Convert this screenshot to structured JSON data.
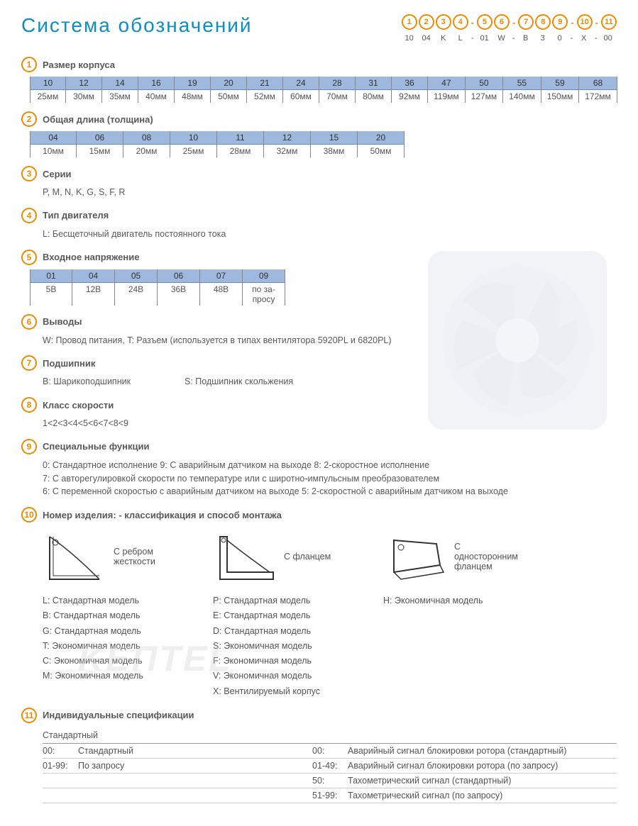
{
  "title": "Система обозначений",
  "colors": {
    "accent": "#f08a00",
    "blue": "#0b8dc6",
    "table_bg": "#9fb8dd",
    "text": "#555"
  },
  "code_strip": {
    "positions": [
      "1",
      "2",
      "3",
      "4",
      "5",
      "6",
      "7",
      "8",
      "9",
      "10",
      "11"
    ],
    "dashes_after": [
      3,
      5,
      8,
      9
    ],
    "values": [
      "10",
      "04",
      "K",
      "L",
      "01",
      "W",
      "B",
      "3",
      "0",
      "X",
      "00"
    ]
  },
  "sections": {
    "s1": {
      "num": "1",
      "title": "Размер корпуса",
      "table": {
        "top": [
          "10",
          "12",
          "14",
          "16",
          "19",
          "20",
          "21",
          "24",
          "28",
          "31",
          "36",
          "47",
          "50",
          "55",
          "59",
          "68"
        ],
        "bot": [
          "25мм",
          "30мм",
          "35мм",
          "40мм",
          "48мм",
          "50мм",
          "52мм",
          "60мм",
          "70мм",
          "80мм",
          "92мм",
          "119мм",
          "127мм",
          "140мм",
          "150мм",
          "172мм"
        ]
      }
    },
    "s2": {
      "num": "2",
      "title": "Общая длина (толщина)",
      "table": {
        "top": [
          "04",
          "06",
          "08",
          "10",
          "11",
          "12",
          "15",
          "20"
        ],
        "bot": [
          "10мм",
          "15мм",
          "20мм",
          "25мм",
          "28мм",
          "32мм",
          "38мм",
          "50мм"
        ]
      }
    },
    "s3": {
      "num": "3",
      "title": "Серии",
      "text": "P, M, N, K, G, S, F, R"
    },
    "s4": {
      "num": "4",
      "title": "Тип двигателя",
      "text": "L: Бесщеточный двигатель постоянного тока"
    },
    "s5": {
      "num": "5",
      "title": "Входное напряжение",
      "table": {
        "top": [
          "01",
          "04",
          "05",
          "06",
          "07",
          "09"
        ],
        "bot": [
          "5В",
          "12В",
          "24В",
          "36В",
          "48В",
          "по за-\nпросу"
        ]
      }
    },
    "s6": {
      "num": "6",
      "title": "Выводы",
      "text": "W: Провод питания, T: Разъем (используется в типах вентилятора  5920PL и 6820PL)"
    },
    "s7": {
      "num": "7",
      "title": "Подшипник",
      "text_a": "B: Шарикоподшипник",
      "text_b": "S: Подшипник скольжения"
    },
    "s8": {
      "num": "8",
      "title": "Класс скорости",
      "text": "1<2<3<4<5<6<7<8<9"
    },
    "s9": {
      "num": "9",
      "title": "Специальные функции",
      "lines": [
        "0: Стандартное исполнение   9:  С аварийным датчиком на выходе   8: 2-скоростное исполнение",
        "7: С авторегулировкой скорости по температуре или с широтно-импульсным преобразователем",
        "6: С переменной скоростью с аварийным датчиком на выходе   5: 2-скоростной с аварийным датчиком на выходе"
      ]
    },
    "s10": {
      "num": "10",
      "title": "Номер изделия: - классификация  и способ монтажа",
      "mounts": [
        {
          "label": "С ребром жесткости",
          "list": [
            "L:  Стандартная модель",
            "B:  Стандартная модель",
            "G:  Стандартная модель",
            "T:  Экономичная модель",
            "C:  Экономичная модель",
            "M:  Экономичная модель"
          ]
        },
        {
          "label": "С фланцем",
          "list": [
            "P:  Стандартная модель",
            "E:  Стандартная модель",
            "D:  Стандартная модель",
            "S:  Экономичная модель",
            "F:  Экономичная модель",
            "V:  Экономичная модель",
            "X:  Вентилируемый корпус"
          ]
        },
        {
          "label": "С односторонним фланцем",
          "list": [
            "H:  Экономичная модель"
          ]
        }
      ]
    },
    "s11": {
      "num": "11",
      "title": "Индивидуальные спецификации",
      "head": "Стандартный",
      "left": [
        {
          "c": "00:",
          "t": "Стандартный"
        },
        {
          "c": "01-99:",
          "t": "По запросу"
        }
      ],
      "right": [
        {
          "c": "00:",
          "t": "Аварийный сигнал блокировки ротора (стандартный)"
        },
        {
          "c": "01-49:",
          "t": "Аварийный сигнал блокировки ротора (по запросу)"
        },
        {
          "c": "50:",
          "t": "Тахометрический сигнал (стандартный)"
        },
        {
          "c": "51-99:",
          "t": "Тахометрический сигнал (по запросу)"
        }
      ]
    }
  },
  "watermark": "KEПTEL"
}
